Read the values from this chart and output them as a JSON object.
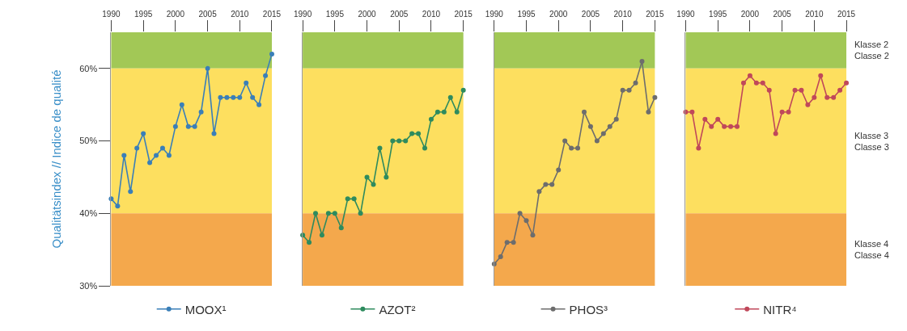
{
  "chart_data": [
    {
      "type": "line",
      "ylabel": "Qualitätsindex // Indice de qualité",
      "x": [
        1990,
        1991,
        1992,
        1993,
        1994,
        1995,
        1996,
        1997,
        1998,
        1999,
        2000,
        2001,
        2002,
        2003,
        2004,
        2005,
        2006,
        2007,
        2008,
        2009,
        2010,
        2011,
        2012,
        2013,
        2014,
        2015
      ],
      "series": [
        {
          "name": "MOOX¹",
          "color": "#3a7fb8",
          "values": [
            42,
            41,
            48,
            43,
            49,
            51,
            47,
            48,
            49,
            48,
            52,
            55,
            52,
            52,
            54,
            60,
            51,
            56,
            56,
            56,
            56,
            58,
            56,
            55,
            59,
            62
          ]
        }
      ],
      "xlim": [
        1990,
        2015
      ],
      "xticks": [
        1990,
        1995,
        2000,
        2005,
        2010,
        2015
      ],
      "ylim": [
        30,
        65
      ],
      "yticks": [
        {
          "value": 30,
          "label": "30%"
        },
        {
          "value": 40,
          "label": "40%"
        },
        {
          "value": 50,
          "label": "50%"
        },
        {
          "value": 60,
          "label": "60%"
        }
      ],
      "bands": [
        {
          "axis": "y",
          "from": 60,
          "to": 65,
          "color": "#a2c856"
        },
        {
          "axis": "y",
          "from": 40,
          "to": 60,
          "color": "#fddf5f"
        },
        {
          "axis": "y",
          "from": 30,
          "to": 40,
          "color": "#f4a84c"
        }
      ],
      "marker": "circle",
      "legend": "bottom",
      "grid": false
    },
    {
      "type": "line",
      "x": [
        1990,
        1991,
        1992,
        1993,
        1994,
        1995,
        1996,
        1997,
        1998,
        1999,
        2000,
        2001,
        2002,
        2003,
        2004,
        2005,
        2006,
        2007,
        2008,
        2009,
        2010,
        2011,
        2012,
        2013,
        2014,
        2015
      ],
      "series": [
        {
          "name": "AZOT²",
          "color": "#2e8b5e",
          "values": [
            37,
            36,
            40,
            37,
            40,
            40,
            38,
            42,
            42,
            40,
            45,
            44,
            49,
            45,
            50,
            50,
            50,
            51,
            51,
            49,
            53,
            54,
            54,
            56,
            54,
            57
          ]
        }
      ],
      "xlim": [
        1990,
        2015
      ],
      "xticks": [
        1990,
        1995,
        2000,
        2005,
        2010,
        2015
      ],
      "ylim": [
        30,
        65
      ],
      "tick_labels": "x",
      "bands": [
        {
          "axis": "y",
          "from": 60,
          "to": 65,
          "color": "#a2c856"
        },
        {
          "axis": "y",
          "from": 40,
          "to": 60,
          "color": "#fddf5f"
        },
        {
          "axis": "y",
          "from": 30,
          "to": 40,
          "color": "#f4a84c"
        }
      ],
      "marker": "circle",
      "legend": "bottom",
      "grid": false
    },
    {
      "type": "line",
      "x": [
        1990,
        1991,
        1992,
        1993,
        1994,
        1995,
        1996,
        1997,
        1998,
        1999,
        2000,
        2001,
        2002,
        2003,
        2004,
        2005,
        2006,
        2007,
        2008,
        2009,
        2010,
        2011,
        2012,
        2013,
        2014,
        2015
      ],
      "series": [
        {
          "name": "PHOS³",
          "color": "#6d6d6d",
          "values": [
            33,
            34,
            36,
            36,
            40,
            39,
            37,
            43,
            44,
            44,
            46,
            50,
            49,
            49,
            54,
            52,
            50,
            51,
            52,
            53,
            57,
            57,
            58,
            61,
            54,
            56
          ]
        }
      ],
      "xlim": [
        1990,
        2015
      ],
      "xticks": [
        1990,
        1995,
        2000,
        2005,
        2010,
        2015
      ],
      "ylim": [
        30,
        65
      ],
      "tick_labels": "x",
      "bands": [
        {
          "axis": "y",
          "from": 60,
          "to": 65,
          "color": "#a2c856"
        },
        {
          "axis": "y",
          "from": 40,
          "to": 60,
          "color": "#fddf5f"
        },
        {
          "axis": "y",
          "from": 30,
          "to": 40,
          "color": "#f4a84c"
        }
      ],
      "marker": "circle",
      "legend": "bottom",
      "grid": false
    },
    {
      "type": "line",
      "x": [
        1990,
        1991,
        1992,
        1993,
        1994,
        1995,
        1996,
        1997,
        1998,
        1999,
        2000,
        2001,
        2002,
        2003,
        2004,
        2005,
        2006,
        2007,
        2008,
        2009,
        2010,
        2011,
        2012,
        2013,
        2014,
        2015
      ],
      "series": [
        {
          "name": "NITR⁴",
          "color": "#c0485a",
          "values": [
            54,
            54,
            49,
            53,
            52,
            53,
            52,
            52,
            52,
            58,
            59,
            58,
            58,
            57,
            51,
            54,
            54,
            57,
            57,
            55,
            56,
            59,
            56,
            56,
            57,
            58
          ]
        }
      ],
      "xlim": [
        1990,
        2015
      ],
      "xticks": [
        1990,
        1995,
        2000,
        2005,
        2010,
        2015
      ],
      "ylim": [
        30,
        65
      ],
      "tick_labels": "x",
      "bands": [
        {
          "axis": "y",
          "from": 60,
          "to": 65,
          "color": "#a2c856",
          "label": "Klasse 2\nClasse 2"
        },
        {
          "axis": "y",
          "from": 40,
          "to": 60,
          "color": "#fddf5f",
          "label": "Klasse 3\nClasse 3"
        },
        {
          "axis": "y",
          "from": 30,
          "to": 40,
          "color": "#f4a84c",
          "label": "Klasse 4\nClasse 4"
        }
      ],
      "marker": "circle",
      "legend": "bottom",
      "grid": false
    }
  ]
}
